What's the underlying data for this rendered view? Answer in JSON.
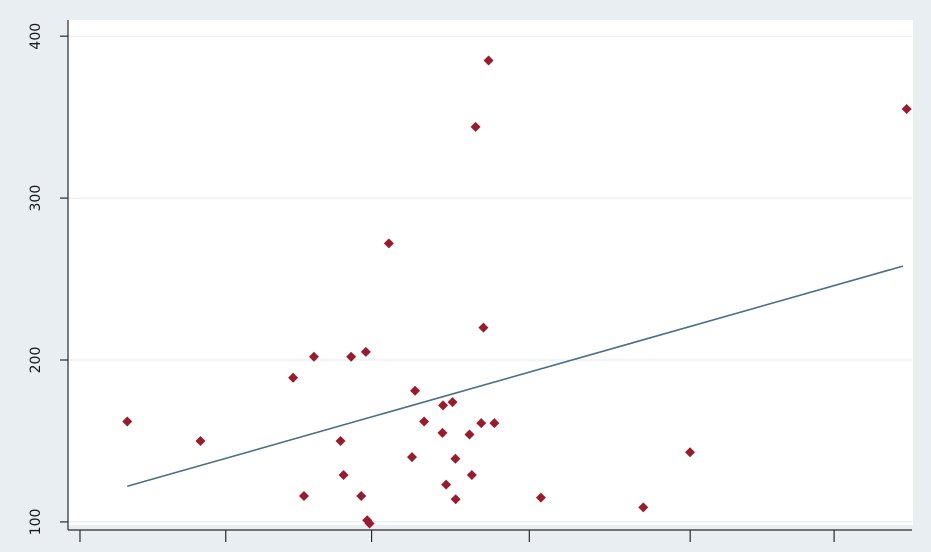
{
  "chart_data": {
    "type": "scatter",
    "title": "",
    "xlabel": "",
    "ylabel": "",
    "ylim": [
      95,
      410
    ],
    "xlim": [
      0,
      1
    ],
    "yticks": [
      100,
      200,
      300,
      400
    ],
    "yticklabels": [
      "100",
      "200",
      "300",
      "400"
    ],
    "grid": true,
    "legend": "none",
    "colors": {
      "marker": "#9b1b2a",
      "fit_line": "#4a6f86",
      "gridline": "#e3ebf0",
      "plot_bg": "#ffffff",
      "outer_bg": "#e8eef2",
      "axis": "#2a2a2a"
    },
    "series": [
      {
        "marker": "diamond",
        "x": [
          0.0702,
          0.157,
          0.2667,
          0.2914,
          0.2796,
          0.3229,
          0.3265,
          0.3355,
          0.3474,
          0.3529,
          0.3545,
          0.3573,
          0.3802,
          0.4112,
          0.4076,
          0.4219,
          0.4444,
          0.4437,
          0.448,
          0.4556,
          0.459,
          0.4593,
          0.4757,
          0.4785,
          0.4829,
          0.4896,
          0.4922,
          0.4983,
          0.5052,
          0.5603,
          0.6816,
          0.737,
          0.9937
        ],
        "y": [
          162,
          150,
          189,
          202,
          116,
          150,
          129,
          202,
          116,
          205,
          101,
          99,
          272,
          181,
          140,
          162,
          172,
          155,
          123,
          174,
          139,
          114,
          154,
          129,
          344,
          161,
          220,
          385,
          161,
          115,
          109,
          143,
          355
        ]
      }
    ],
    "fit_line": {
      "x": [
        0.0702,
        0.9892
      ],
      "y": [
        122,
        258
      ]
    }
  }
}
